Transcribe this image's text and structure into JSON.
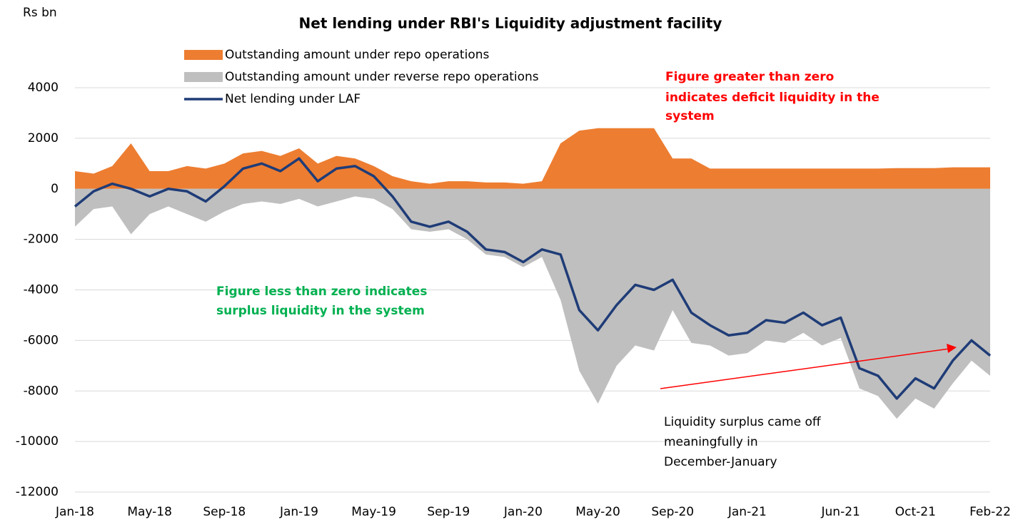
{
  "chart_data": {
    "type": "area-line",
    "title": "Net lending under RBI's Liquidity  adjustment facility",
    "y_label": "Rs bn",
    "categories": [
      "Jan-18",
      null,
      null,
      null,
      "May-18",
      null,
      null,
      null,
      "Sep-18",
      null,
      null,
      null,
      "Jan-19",
      null,
      null,
      null,
      "May-19",
      null,
      null,
      null,
      "Sep-19",
      null,
      null,
      null,
      "Jan-20",
      null,
      null,
      null,
      "May-20",
      null,
      null,
      null,
      "Sep-20",
      null,
      null,
      null,
      "Jan-21",
      null,
      null,
      null,
      null,
      "Jun-21",
      null,
      null,
      null,
      "Oct-21",
      null,
      null,
      null,
      "Feb-22"
    ],
    "series": [
      {
        "name": "Outstanding amount under repo operations",
        "kind": "area",
        "color": "#ed7d31",
        "values": [
          700,
          600,
          900,
          1800,
          700,
          700,
          900,
          800,
          1000,
          1400,
          1500,
          1300,
          1600,
          1000,
          1300,
          1200,
          900,
          500,
          300,
          200,
          300,
          300,
          250,
          250,
          200,
          300,
          1800,
          2300,
          2400,
          2400,
          2400,
          2400,
          1200,
          1200,
          800,
          800,
          800,
          800,
          800,
          800,
          800,
          800,
          800,
          800,
          820,
          820,
          820,
          850,
          850,
          850
        ]
      },
      {
        "name": "Outstanding amount under reverse repo operations",
        "kind": "area",
        "color": "#bfbfbf",
        "values": [
          -1500,
          -800,
          -700,
          -1800,
          -1000,
          -700,
          -1000,
          -1300,
          -900,
          -600,
          -500,
          -600,
          -400,
          -700,
          -500,
          -300,
          -400,
          -800,
          -1600,
          -1700,
          -1600,
          -2000,
          -2600,
          -2700,
          -3100,
          -2700,
          -4400,
          -7200,
          -8500,
          -7000,
          -6200,
          -6400,
          -4800,
          -6100,
          -6200,
          -6600,
          -6500,
          -6000,
          -6100,
          -5700,
          -6200,
          -5900,
          -7900,
          -8200,
          -9100,
          -8300,
          -8700,
          -7700,
          -6800,
          -7400
        ]
      },
      {
        "name": "Net lending under LAF",
        "kind": "line",
        "color": "#1f3c77",
        "values": [
          -700,
          -100,
          200,
          0,
          -300,
          0,
          -100,
          -500,
          100,
          800,
          1000,
          700,
          1200,
          300,
          800,
          900,
          500,
          -300,
          -1300,
          -1500,
          -1300,
          -1700,
          -2400,
          -2500,
          -2900,
          -2400,
          -2600,
          -4800,
          -5600,
          -4600,
          -3800,
          -4000,
          -3600,
          -4900,
          -5400,
          -5800,
          -5700,
          -5200,
          -5300,
          -4900,
          -5400,
          -5100,
          -7100,
          -7400,
          -8300,
          -7500,
          -7900,
          -6800,
          -6000,
          -6600
        ]
      }
    ],
    "ylim": [
      -12000,
      4000
    ],
    "yticks": [
      4000,
      2000,
      0,
      -2000,
      -4000,
      -6000,
      -8000,
      -10000,
      -12000
    ],
    "grid": true,
    "annotations": [
      [
        "Figure greater than zero",
        "indicates deficit liquidity in the",
        "system"
      ],
      [
        "Figure less than zero indicates",
        "surplus liquidity in the system"
      ],
      [
        "Liquidity surplus came off",
        "meaningfully in",
        "December-January"
      ]
    ]
  }
}
